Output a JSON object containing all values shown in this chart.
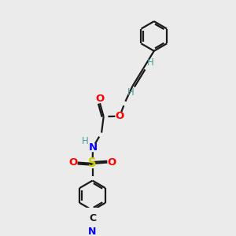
{
  "bg_color": "#ebebeb",
  "line_color": "#1a1a1a",
  "bond_width": 1.6,
  "O_color": "#ff0000",
  "N_color": "#0000ff",
  "S_color": "#cccc00",
  "C_color": "#1a1a1a",
  "H_color": "#4a9a9a",
  "figsize": [
    3.0,
    3.0
  ],
  "dpi": 100,
  "xlim": [
    0,
    10
  ],
  "ylim": [
    0,
    10
  ]
}
